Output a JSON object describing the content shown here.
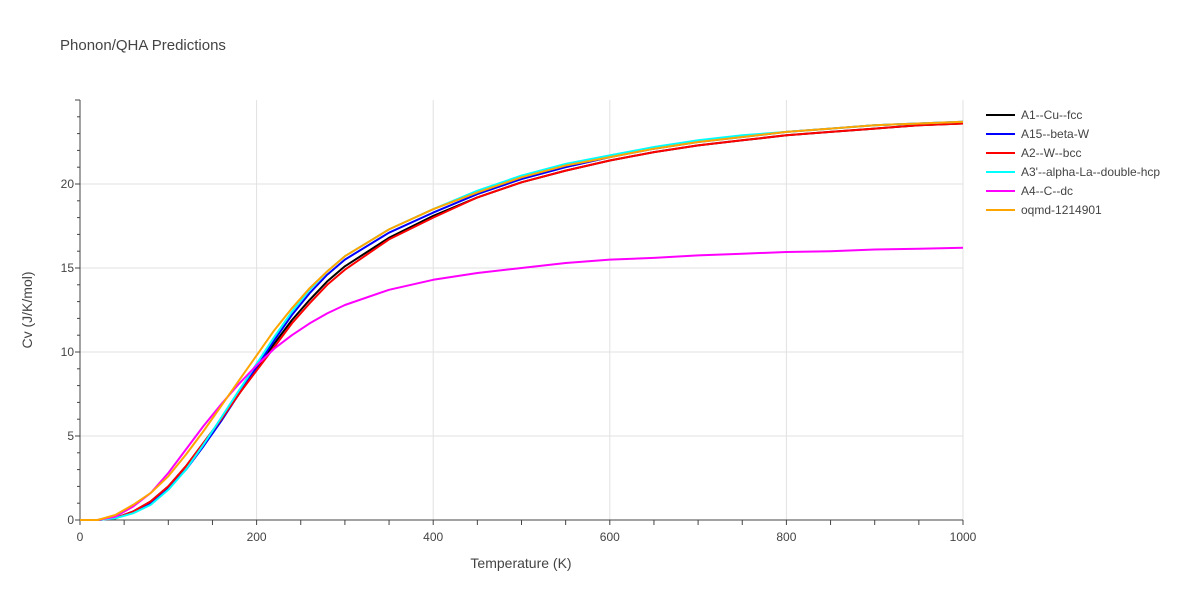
{
  "chart_data": {
    "type": "line",
    "title": "Phonon/QHA Predictions",
    "xlabel": "Temperature (K)",
    "ylabel": "Cv (J/K/mol)",
    "xlim": [
      0,
      1000
    ],
    "ylim": [
      0,
      25
    ],
    "xticks": [
      0,
      200,
      400,
      600,
      800,
      1000
    ],
    "yticks": [
      0,
      5,
      10,
      15,
      20
    ],
    "grid": true,
    "legend_position": "right",
    "series": [
      {
        "name": "A1--Cu--fcc",
        "color": "#000000",
        "x": [
          0,
          20,
          40,
          60,
          80,
          100,
          120,
          140,
          160,
          180,
          200,
          220,
          240,
          260,
          280,
          300,
          350,
          400,
          450,
          500,
          550,
          600,
          650,
          700,
          750,
          800,
          850,
          900,
          950,
          1000
        ],
        "y": [
          0,
          0,
          0.1,
          0.5,
          1.1,
          2.0,
          3.2,
          4.6,
          6.0,
          7.5,
          9.0,
          10.5,
          11.9,
          13.1,
          14.2,
          15.1,
          16.8,
          18.1,
          19.2,
          20.1,
          20.8,
          21.4,
          21.9,
          22.3,
          22.6,
          22.9,
          23.1,
          23.3,
          23.5,
          23.6
        ]
      },
      {
        "name": "A15--beta-W",
        "color": "#0000ff",
        "x": [
          0,
          20,
          40,
          60,
          80,
          100,
          120,
          140,
          160,
          180,
          200,
          220,
          240,
          260,
          280,
          300,
          350,
          400,
          450,
          500,
          550,
          600,
          650,
          700,
          750,
          800,
          850,
          900,
          950,
          1000
        ],
        "y": [
          0,
          0,
          0.1,
          0.5,
          1.0,
          1.9,
          3.0,
          4.4,
          5.9,
          7.5,
          9.1,
          10.7,
          12.2,
          13.5,
          14.6,
          15.5,
          17.1,
          18.3,
          19.4,
          20.3,
          21.0,
          21.6,
          22.1,
          22.5,
          22.8,
          23.1,
          23.3,
          23.5,
          23.6,
          23.7
        ]
      },
      {
        "name": "A2--W--bcc",
        "color": "#ff0000",
        "x": [
          0,
          20,
          40,
          60,
          80,
          100,
          120,
          140,
          160,
          180,
          200,
          220,
          240,
          260,
          280,
          300,
          350,
          400,
          450,
          500,
          550,
          600,
          650,
          700,
          750,
          800,
          850,
          900,
          950,
          1000
        ],
        "y": [
          0,
          0,
          0.1,
          0.5,
          1.1,
          2.0,
          3.2,
          4.6,
          6.0,
          7.5,
          8.9,
          10.3,
          11.7,
          12.9,
          14.0,
          14.9,
          16.7,
          18.0,
          19.2,
          20.1,
          20.8,
          21.4,
          21.9,
          22.3,
          22.6,
          22.9,
          23.1,
          23.3,
          23.5,
          23.6
        ]
      },
      {
        "name": "A3'--alpha-La--double-hcp",
        "color": "#00ffff",
        "x": [
          0,
          20,
          40,
          60,
          80,
          100,
          120,
          140,
          160,
          180,
          200,
          220,
          240,
          260,
          280,
          300,
          350,
          400,
          450,
          500,
          550,
          600,
          650,
          700,
          750,
          800,
          850,
          900,
          950,
          1000
        ],
        "y": [
          0,
          0,
          0.1,
          0.4,
          0.9,
          1.8,
          3.0,
          4.5,
          6.1,
          7.7,
          9.3,
          10.9,
          12.4,
          13.7,
          14.8,
          15.7,
          17.3,
          18.5,
          19.6,
          20.5,
          21.2,
          21.7,
          22.2,
          22.6,
          22.9,
          23.1,
          23.3,
          23.5,
          23.6,
          23.7
        ]
      },
      {
        "name": "A4--C--dc",
        "color": "#ff00ff",
        "x": [
          0,
          20,
          40,
          60,
          80,
          100,
          120,
          140,
          160,
          180,
          200,
          220,
          240,
          260,
          280,
          300,
          350,
          400,
          450,
          500,
          550,
          600,
          650,
          700,
          750,
          800,
          850,
          900,
          950,
          1000
        ],
        "y": [
          0,
          0,
          0.2,
          0.8,
          1.6,
          2.8,
          4.2,
          5.6,
          6.9,
          8.1,
          9.2,
          10.2,
          11.0,
          11.7,
          12.3,
          12.8,
          13.7,
          14.3,
          14.7,
          15.0,
          15.3,
          15.5,
          15.6,
          15.75,
          15.85,
          15.95,
          16.0,
          16.1,
          16.15,
          16.2
        ]
      },
      {
        "name": "oqmd-1214901",
        "color": "#ffa500",
        "x": [
          0,
          20,
          40,
          60,
          80,
          100,
          120,
          140,
          160,
          180,
          200,
          220,
          240,
          260,
          280,
          300,
          350,
          400,
          450,
          500,
          550,
          600,
          650,
          700,
          750,
          800,
          850,
          900,
          950,
          1000
        ],
        "y": [
          0,
          0,
          0.3,
          0.9,
          1.6,
          2.6,
          3.9,
          5.3,
          6.8,
          8.3,
          9.8,
          11.3,
          12.6,
          13.8,
          14.8,
          15.7,
          17.3,
          18.5,
          19.5,
          20.4,
          21.1,
          21.6,
          22.1,
          22.5,
          22.8,
          23.1,
          23.3,
          23.5,
          23.6,
          23.7
        ]
      }
    ]
  }
}
